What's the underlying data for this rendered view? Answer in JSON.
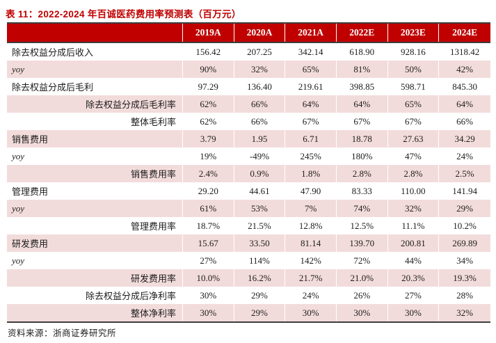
{
  "title": "表 11：2022-2024 年百诚医药费用率预测表（百万元）",
  "source": "资料来源：浙商证券研究所",
  "colors": {
    "header_bg": "#c00000",
    "title_red": "#c00000",
    "row_pink": "#f2dcdb",
    "rule_dark": "#3d3d3d"
  },
  "table": {
    "columns": [
      "2019A",
      "2020A",
      "2021A",
      "2022E",
      "2023E",
      "2024E"
    ],
    "rows": [
      {
        "label": "除去权益分成后收入",
        "align": "left",
        "italic": false,
        "shaded": false,
        "values": [
          "156.42",
          "207.25",
          "342.14",
          "618.90",
          "928.16",
          "1318.42"
        ]
      },
      {
        "label": "yoy",
        "align": "left",
        "italic": true,
        "shaded": true,
        "values": [
          "90%",
          "32%",
          "65%",
          "81%",
          "50%",
          "42%"
        ]
      },
      {
        "label": "除去权益分成后毛利",
        "align": "left",
        "italic": false,
        "shaded": false,
        "values": [
          "97.29",
          "136.40",
          "219.61",
          "398.85",
          "598.71",
          "845.30"
        ]
      },
      {
        "label": "除去权益分成后毛利率",
        "align": "right",
        "italic": false,
        "shaded": true,
        "values": [
          "62%",
          "66%",
          "64%",
          "64%",
          "65%",
          "64%"
        ]
      },
      {
        "label": "整体毛利率",
        "align": "right",
        "italic": false,
        "shaded": false,
        "values": [
          "62%",
          "66%",
          "67%",
          "67%",
          "67%",
          "66%"
        ]
      },
      {
        "label": "销售费用",
        "align": "left",
        "italic": false,
        "shaded": true,
        "values": [
          "3.79",
          "1.95",
          "6.71",
          "18.78",
          "27.63",
          "34.29"
        ]
      },
      {
        "label": "yoy",
        "align": "left",
        "italic": true,
        "shaded": false,
        "values": [
          "19%",
          "-49%",
          "245%",
          "180%",
          "47%",
          "24%"
        ]
      },
      {
        "label": "销售费用率",
        "align": "right",
        "italic": false,
        "shaded": true,
        "values": [
          "2.4%",
          "0.9%",
          "1.8%",
          "2.8%",
          "2.8%",
          "2.5%"
        ]
      },
      {
        "label": "管理费用",
        "align": "left",
        "italic": false,
        "shaded": false,
        "values": [
          "29.20",
          "44.61",
          "47.90",
          "83.33",
          "110.00",
          "141.94"
        ]
      },
      {
        "label": "yoy",
        "align": "left",
        "italic": true,
        "shaded": true,
        "values": [
          "61%",
          "53%",
          "7%",
          "74%",
          "32%",
          "29%"
        ]
      },
      {
        "label": "管理费用率",
        "align": "right",
        "italic": false,
        "shaded": false,
        "values": [
          "18.7%",
          "21.5%",
          "12.8%",
          "12.5%",
          "11.1%",
          "10.2%"
        ]
      },
      {
        "label": "研发费用",
        "align": "left",
        "italic": false,
        "shaded": true,
        "values": [
          "15.67",
          "33.50",
          "81.14",
          "139.70",
          "200.81",
          "269.89"
        ]
      },
      {
        "label": "yoy",
        "align": "left",
        "italic": true,
        "shaded": false,
        "values": [
          "27%",
          "114%",
          "142%",
          "72%",
          "44%",
          "34%"
        ]
      },
      {
        "label": "研发费用率",
        "align": "right",
        "italic": false,
        "shaded": true,
        "values": [
          "10.0%",
          "16.2%",
          "21.7%",
          "21.0%",
          "20.3%",
          "19.3%"
        ]
      },
      {
        "label": "除去权益分成后净利率",
        "align": "right",
        "italic": false,
        "shaded": false,
        "values": [
          "30%",
          "29%",
          "24%",
          "26%",
          "27%",
          "28%"
        ]
      },
      {
        "label": "整体净利率",
        "align": "right",
        "italic": false,
        "shaded": true,
        "values": [
          "30%",
          "29%",
          "30%",
          "30%",
          "30%",
          "32%"
        ]
      }
    ]
  }
}
